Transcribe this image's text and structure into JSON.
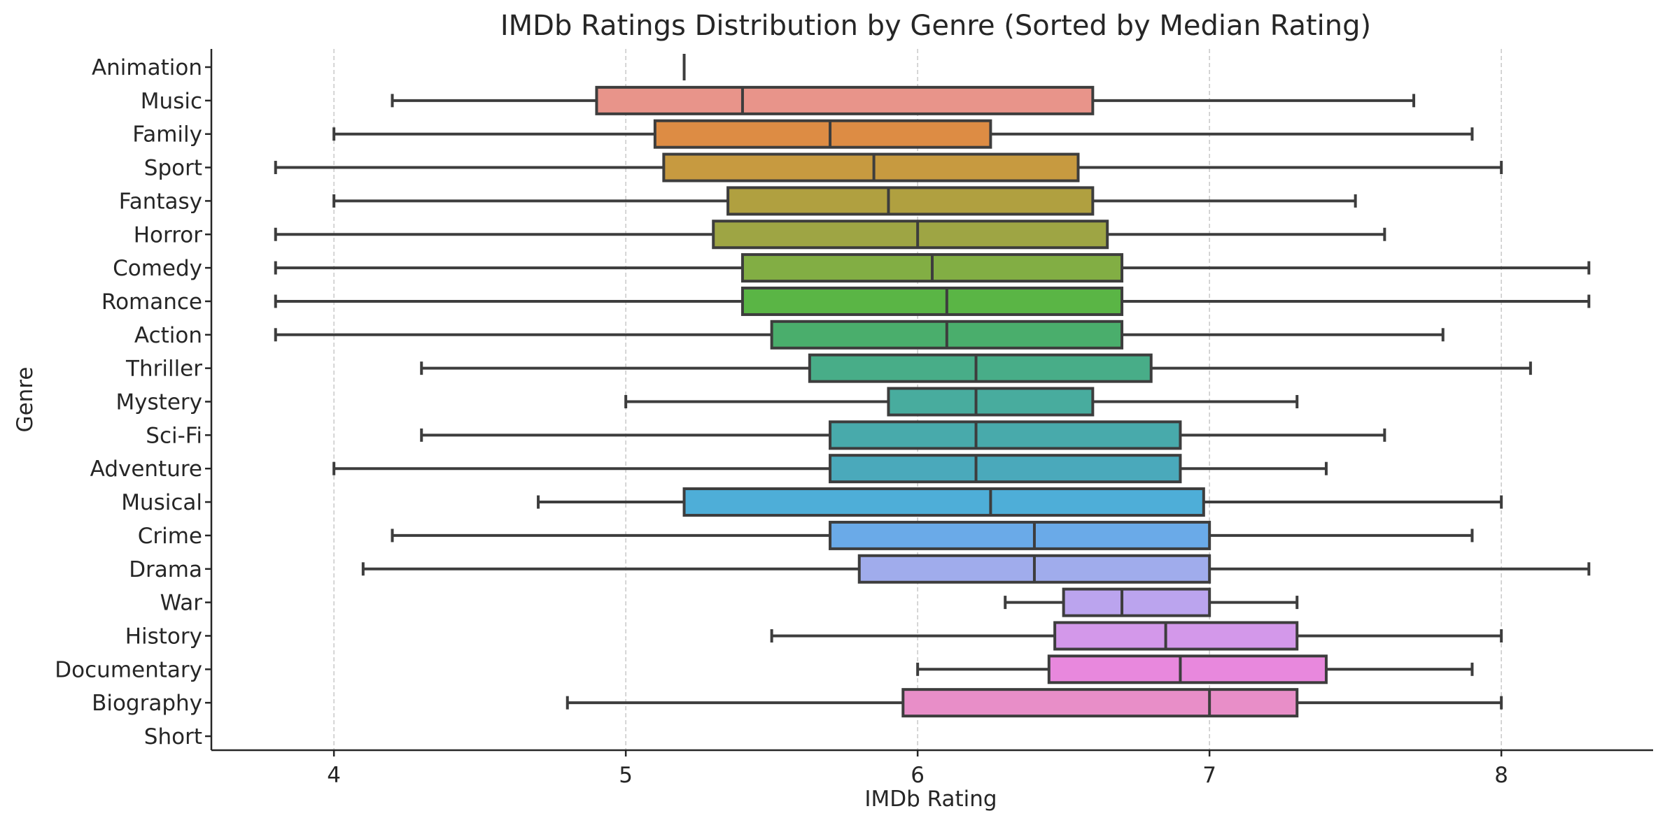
{
  "chart_data": {
    "type": "box",
    "title": "IMDb Ratings Distribution by Genre (Sorted by Median Rating)",
    "xlabel": "IMDb Rating",
    "ylabel": "Genre",
    "xlim": [
      3.58,
      8.52
    ],
    "xticks": [
      4,
      5,
      6,
      7,
      8
    ],
    "grid": "x-dashed",
    "categories": [
      "Animation",
      "Music",
      "Family",
      "Sport",
      "Fantasy",
      "Horror",
      "Comedy",
      "Romance",
      "Action",
      "Thriller",
      "Mystery",
      "Sci-Fi",
      "Adventure",
      "Musical",
      "Crime",
      "Drama",
      "War",
      "History",
      "Documentary",
      "Biography",
      "Short"
    ],
    "boxes": [
      {
        "genre": "Animation",
        "min": 5.2,
        "q1": 5.2,
        "median": 5.2,
        "q3": 5.2,
        "max": 5.2,
        "color": "#ffffff"
      },
      {
        "genre": "Music",
        "min": 4.2,
        "q1": 4.9,
        "median": 5.4,
        "q3": 6.6,
        "max": 7.7,
        "color": "#e8948a"
      },
      {
        "genre": "Family",
        "min": 4.0,
        "q1": 5.1,
        "median": 5.7,
        "q3": 6.25,
        "max": 7.9,
        "color": "#dd8c44"
      },
      {
        "genre": "Sport",
        "min": 3.8,
        "q1": 5.13,
        "median": 5.85,
        "q3": 6.55,
        "max": 8.0,
        "color": "#c79a40"
      },
      {
        "genre": "Fantasy",
        "min": 4.0,
        "q1": 5.35,
        "median": 5.9,
        "q3": 6.6,
        "max": 7.5,
        "color": "#b0a040"
      },
      {
        "genre": "Horror",
        "min": 3.8,
        "q1": 5.3,
        "median": 6.0,
        "q3": 6.65,
        "max": 7.6,
        "color": "#9ea544"
      },
      {
        "genre": "Comedy",
        "min": 3.8,
        "q1": 5.4,
        "median": 6.05,
        "q3": 6.7,
        "max": 8.3,
        "color": "#82ae44"
      },
      {
        "genre": "Romance",
        "min": 3.8,
        "q1": 5.4,
        "median": 6.1,
        "q3": 6.7,
        "max": 8.3,
        "color": "#5ab545"
      },
      {
        "genre": "Action",
        "min": 3.8,
        "q1": 5.5,
        "median": 6.1,
        "q3": 6.7,
        "max": 7.8,
        "color": "#4aae6c"
      },
      {
        "genre": "Thriller",
        "min": 4.3,
        "q1": 5.63,
        "median": 6.2,
        "q3": 6.8,
        "max": 8.1,
        "color": "#48ad88"
      },
      {
        "genre": "Mystery",
        "min": 5.0,
        "q1": 5.9,
        "median": 6.2,
        "q3": 6.6,
        "max": 7.3,
        "color": "#48ac9e"
      },
      {
        "genre": "Sci-Fi",
        "min": 4.3,
        "q1": 5.7,
        "median": 6.2,
        "q3": 6.9,
        "max": 7.6,
        "color": "#48aaab"
      },
      {
        "genre": "Adventure",
        "min": 4.0,
        "q1": 5.7,
        "median": 6.2,
        "q3": 6.9,
        "max": 7.4,
        "color": "#4aa9bb"
      },
      {
        "genre": "Musical",
        "min": 4.7,
        "q1": 5.2,
        "median": 6.25,
        "q3": 6.98,
        "max": 8.0,
        "color": "#4eaed8"
      },
      {
        "genre": "Crime",
        "min": 4.2,
        "q1": 5.7,
        "median": 6.4,
        "q3": 7.0,
        "max": 7.9,
        "color": "#6aaae8"
      },
      {
        "genre": "Drama",
        "min": 4.1,
        "q1": 5.8,
        "median": 6.4,
        "q3": 7.0,
        "max": 8.3,
        "color": "#a0acec"
      },
      {
        "genre": "War",
        "min": 6.3,
        "q1": 6.5,
        "median": 6.7,
        "q3": 7.0,
        "max": 7.3,
        "color": "#bba4ee"
      },
      {
        "genre": "History",
        "min": 5.5,
        "q1": 6.47,
        "median": 6.85,
        "q3": 7.3,
        "max": 8.0,
        "color": "#d398ea"
      },
      {
        "genre": "Documentary",
        "min": 6.0,
        "q1": 6.45,
        "median": 6.9,
        "q3": 7.4,
        "max": 7.9,
        "color": "#e888dd"
      },
      {
        "genre": "Biography",
        "min": 4.8,
        "q1": 5.95,
        "median": 7.0,
        "q3": 7.3,
        "max": 8.0,
        "color": "#e88ec8"
      },
      {
        "genre": "Short",
        "min": null,
        "q1": null,
        "median": null,
        "q3": null,
        "max": null,
        "color": "#ffffff"
      }
    ]
  }
}
